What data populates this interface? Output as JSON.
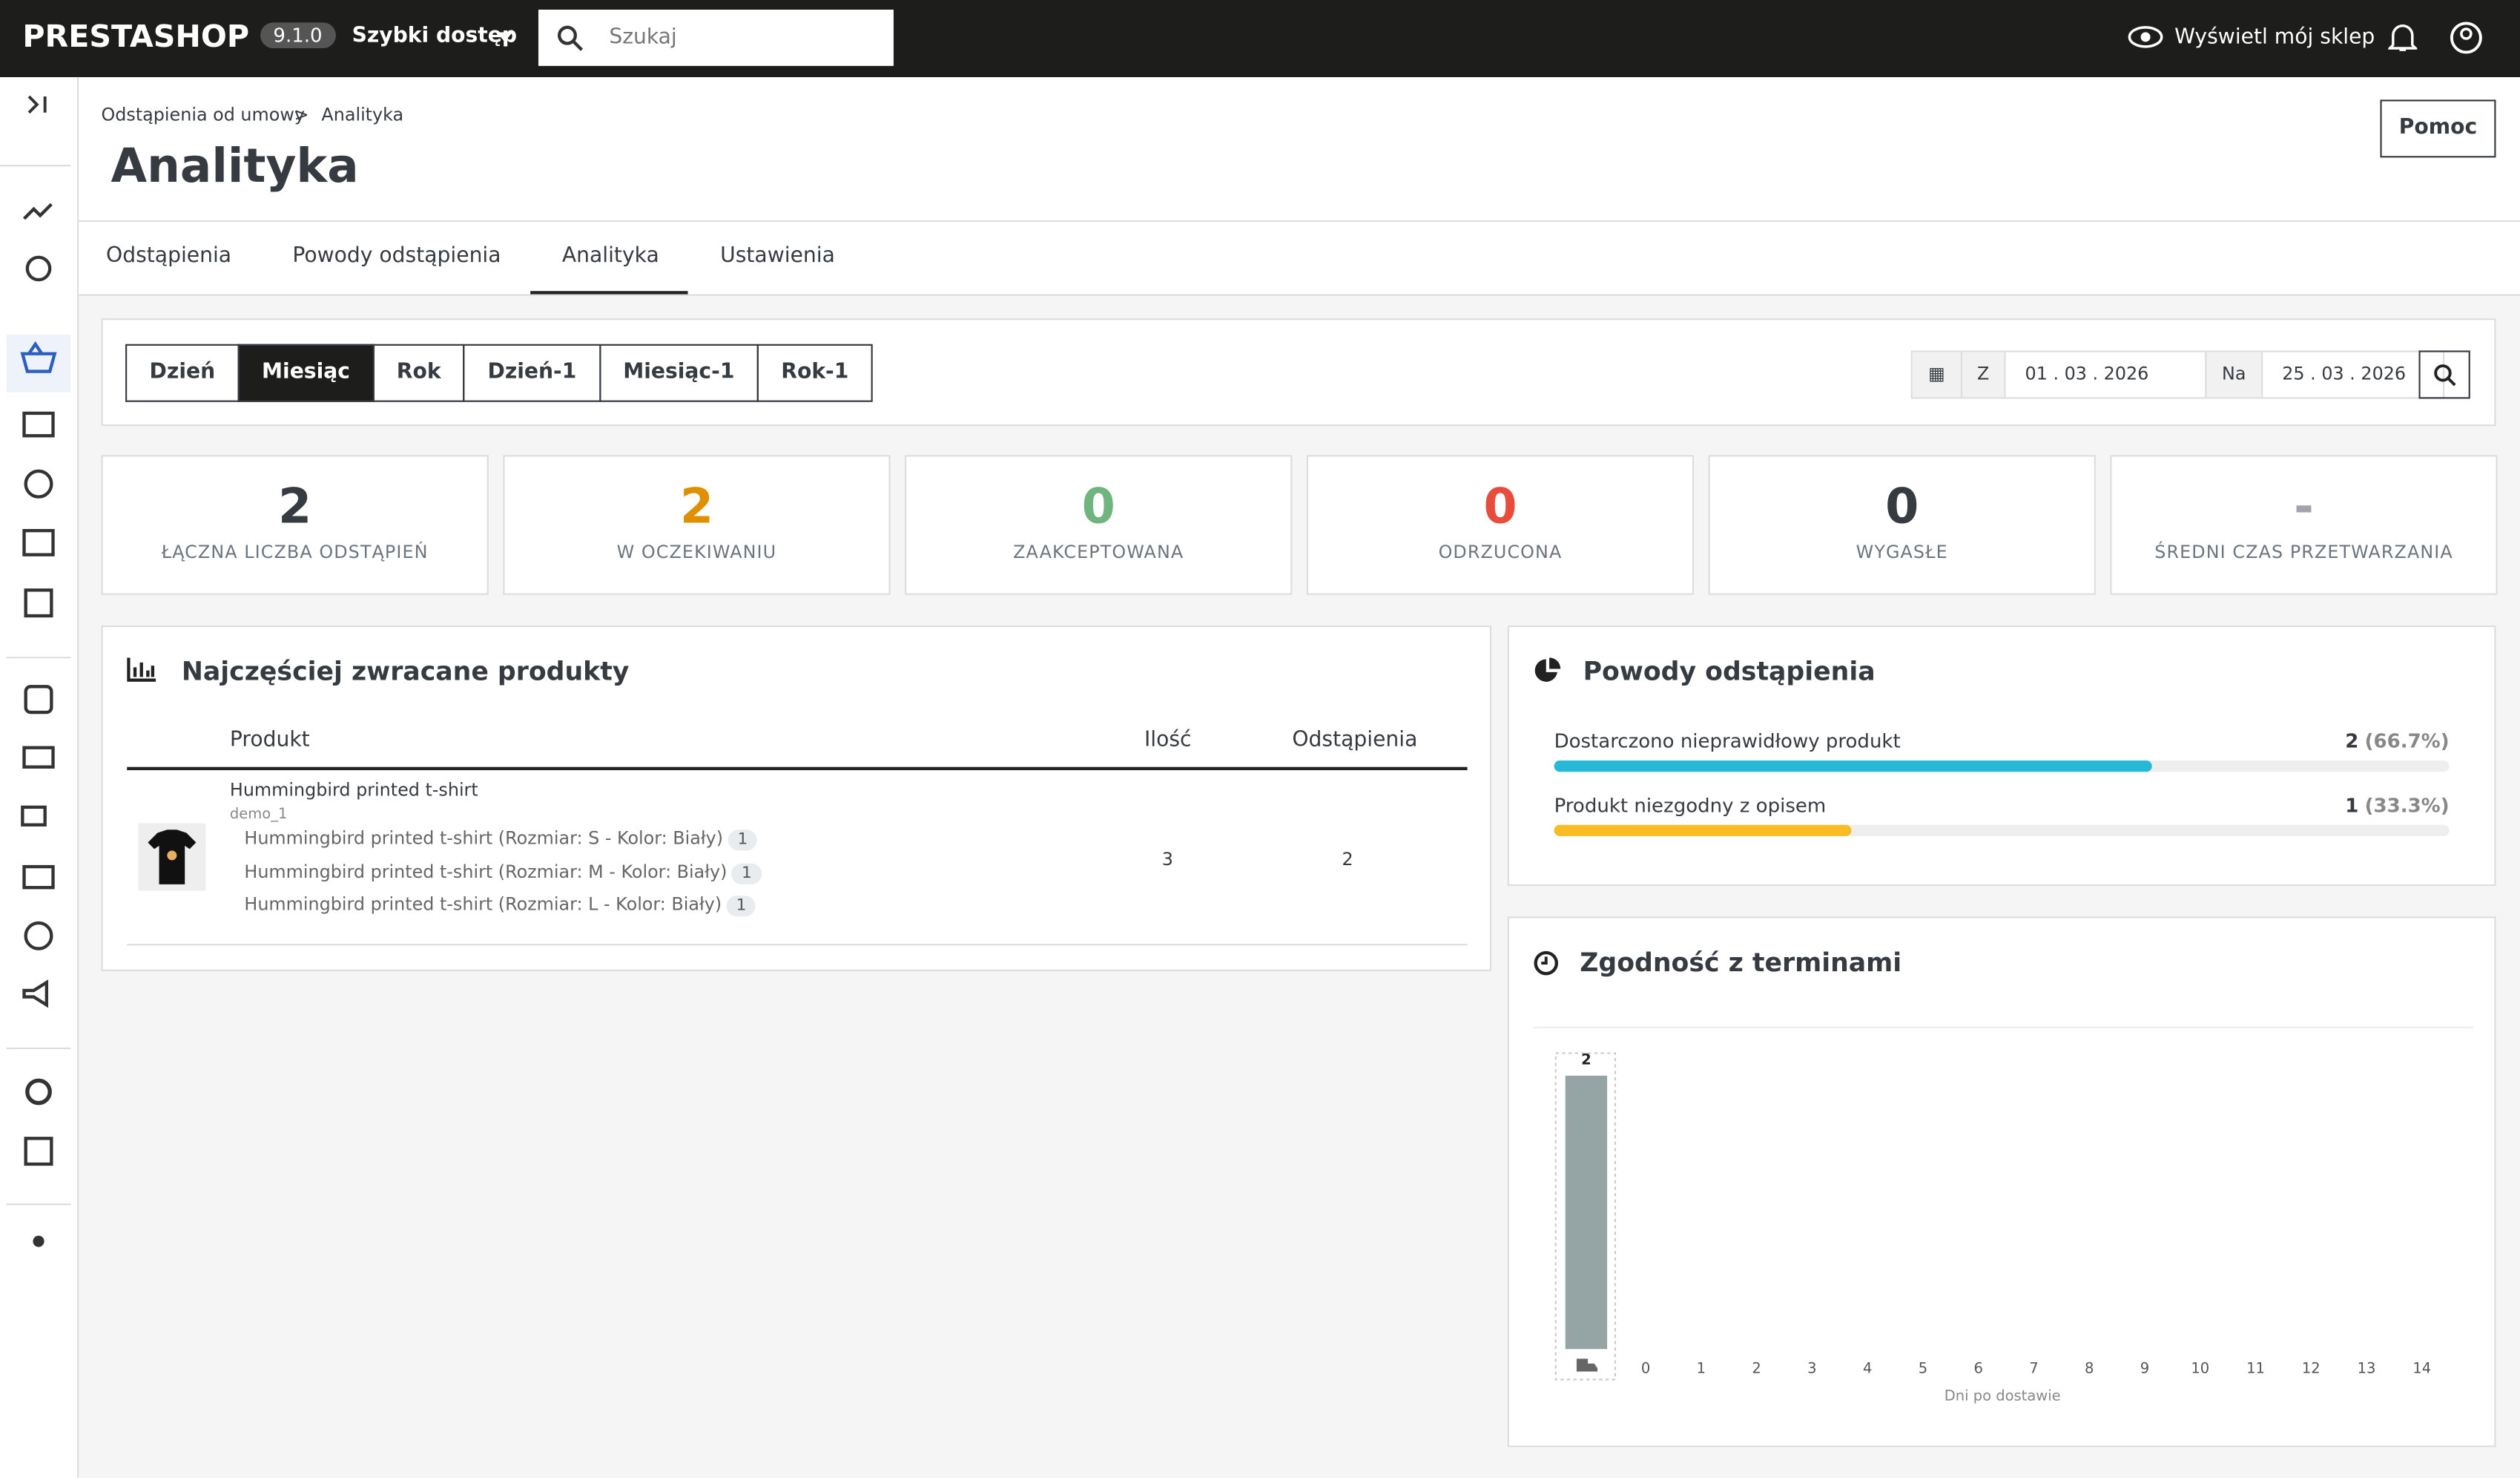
{
  "header": {
    "logo": "PRESTASHOP",
    "version": "9.1.0",
    "quick_access": "Szybki dostęp",
    "search_placeholder": "Szukaj",
    "view_shop": "Wyświetl mój sklep"
  },
  "breadcrumb": [
    "Odstąpienia od umowy",
    "Analityka"
  ],
  "page_title": "Analityka",
  "help_button": "Pomoc",
  "tabs": [
    "Odstąpienia",
    "Powody odstąpienia",
    "Analityka",
    "Ustawienia"
  ],
  "active_tab": 2,
  "periods": [
    "Dzień",
    "Miesiąc",
    "Rok",
    "Dzień-1",
    "Miesiąc-1",
    "Rok-1"
  ],
  "active_period": 1,
  "date_filter": {
    "from_label": "Z",
    "from": "01 . 03 . 2026",
    "to_label": "Na",
    "to": "25 . 03 . 2026"
  },
  "kpis": [
    {
      "value": 2,
      "label": "ŁĄCZNA LICZBA ODSTĄPIEŃ",
      "color": "#363a41"
    },
    {
      "value": 2,
      "label": "W OCZEKIWANIU",
      "color": "#e08f00"
    },
    {
      "value": 0,
      "label": "ZAAKCEPTOWANA",
      "color": "#70b580"
    },
    {
      "value": 0,
      "label": "ODRZUCONA",
      "color": "#e74c3c"
    },
    {
      "value": 0,
      "label": "WYGASŁE",
      "color": "#363a41"
    },
    {
      "value": "-",
      "label": "ŚREDNI CZAS PRZETWARZANIA",
      "color": "#a0a4a8"
    }
  ],
  "products": {
    "title": "Najczęściej zwracane produkty",
    "columns": [
      "Produkt",
      "Ilość",
      "Odstąpienia"
    ],
    "rows": [
      {
        "name": "Hummingbird printed t-shirt",
        "reference": "demo_1",
        "variants": [
          {
            "name": "Hummingbird printed t-shirt (Rozmiar: S - Kolor: Biały)",
            "count": 1
          },
          {
            "name": "Hummingbird printed t-shirt (Rozmiar: M - Kolor: Biały)",
            "count": 1
          },
          {
            "name": "Hummingbird printed t-shirt (Rozmiar: L - Kolor: Biały)",
            "count": 1
          }
        ],
        "quantity": 3,
        "returns": 2
      }
    ]
  },
  "reasons": {
    "title": "Powody odstąpienia",
    "items": [
      {
        "name": "Dostarczono nieprawidłowy produkt",
        "count": 2,
        "percent": 66.7,
        "percent_label": "(66.7%)",
        "color": "#25b9d7"
      },
      {
        "name": "Produkt niezgodny z opisem",
        "count": 1,
        "percent": 33.3,
        "percent_label": "(33.3%)",
        "color": "#fbbb22"
      }
    ]
  },
  "chart_data": {
    "type": "bar",
    "title": "Zgodność z terminami",
    "categories": [
      null,
      "0",
      "1",
      "2",
      "3",
      "4",
      "5",
      "6",
      "7",
      "8",
      "9",
      "10",
      "11",
      "12",
      "13",
      "14"
    ],
    "values": [
      2,
      0,
      0,
      0,
      0,
      0,
      0,
      0,
      0,
      0,
      0,
      0,
      0,
      0,
      0,
      0
    ],
    "color": "#95a5a6",
    "x_label": "Dni po dostawie"
  }
}
